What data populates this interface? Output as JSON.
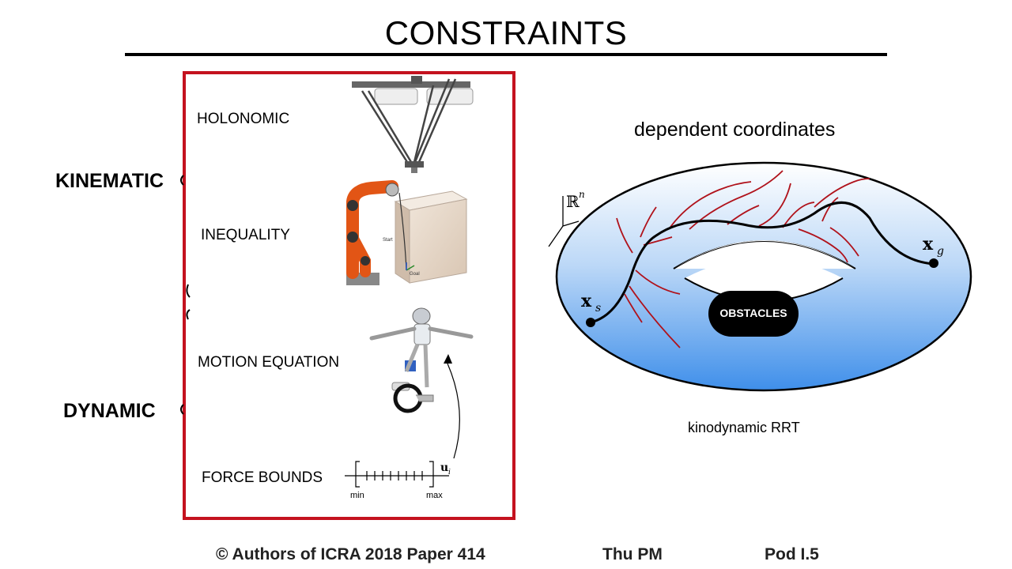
{
  "title": "CONSTRAINTS",
  "left_labels": {
    "kinematic": "KINEMATIC",
    "dynamic": "DYNAMIC"
  },
  "panel": {
    "rows": [
      {
        "label": "HOLONOMIC",
        "illustration": "delta-robot"
      },
      {
        "label": "INEQUALITY",
        "illustration": "robot-arm-with-box"
      },
      {
        "label": "MOTION EQUATION",
        "illustration": "unicycle-robot"
      },
      {
        "label": "FORCE BOUNDS",
        "illustration": "bounded-scale"
      }
    ],
    "scale": {
      "min": "min",
      "max": "max",
      "variable": "u",
      "subscript": "i"
    },
    "arm_labels": {
      "start": "Start",
      "goal": "Goal"
    },
    "border_color": "#c4121f"
  },
  "diagram": {
    "title": "dependent coordinates",
    "space_symbol": "ℝ",
    "space_exponent": "n",
    "start_symbol": "x",
    "start_subscript": "s",
    "goal_symbol": "x",
    "goal_subscript": "g",
    "obstacle_label": "OBSTACLES",
    "caption": "kinodynamic RRT",
    "torus_color": "#3f8fea",
    "tree_color": "#b0121b"
  },
  "footer": {
    "authors": "© Authors of ICRA 2018 Paper 414",
    "time": "Thu PM",
    "pod": "Pod I.5"
  }
}
